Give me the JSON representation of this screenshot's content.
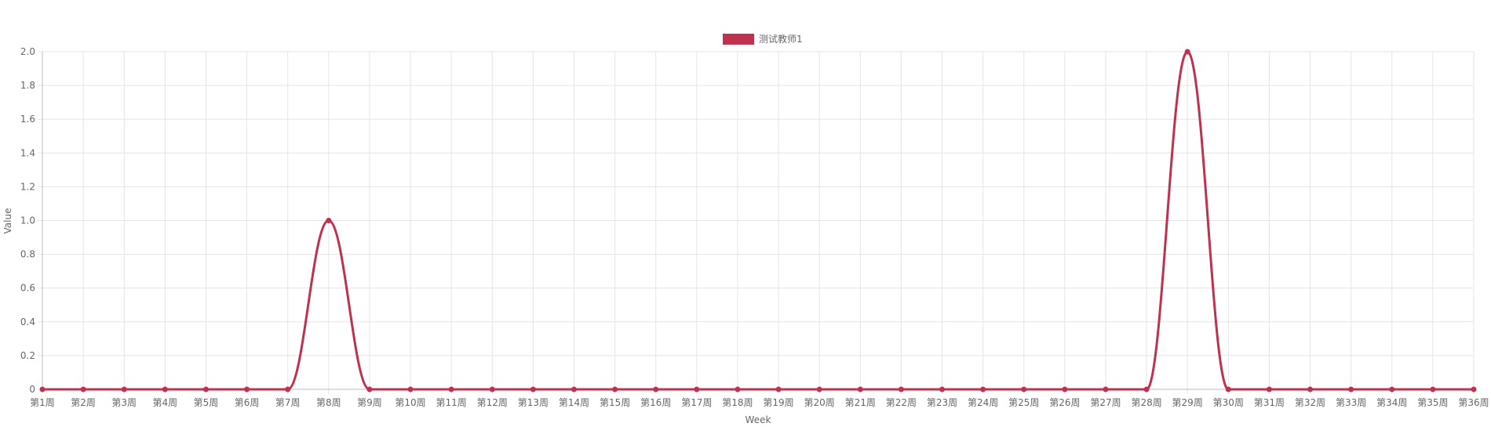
{
  "chart_data": {
    "type": "line",
    "title": "",
    "xlabel": "Week",
    "ylabel": "Value",
    "ylim": [
      0,
      2
    ],
    "yticks": [
      0,
      0.2,
      0.4,
      0.6,
      0.8,
      1.0,
      1.2,
      1.4,
      1.6,
      1.8,
      2.0
    ],
    "ytick_labels": [
      "0",
      "0.2",
      "0.4",
      "0.6",
      "0.8",
      "1.0",
      "1.2",
      "1.4",
      "1.6",
      "1.8",
      "2.0"
    ],
    "grid": true,
    "legend_position": "top-center",
    "categories": [
      "第1周",
      "第2周",
      "第3周",
      "第4周",
      "第5周",
      "第6周",
      "第7周",
      "第8周",
      "第9周",
      "第10周",
      "第11周",
      "第12周",
      "第13周",
      "第14周",
      "第15周",
      "第16周",
      "第17周",
      "第18周",
      "第19周",
      "第20周",
      "第21周",
      "第22周",
      "第23周",
      "第24周",
      "第25周",
      "第26周",
      "第27周",
      "第28周",
      "第29周",
      "第30周",
      "第31周",
      "第32周",
      "第33周",
      "第34周",
      "第35周",
      "第36周"
    ],
    "series": [
      {
        "name": "测试教师1",
        "color": "#c0304f",
        "values": [
          0,
          0,
          0,
          0,
          0,
          0,
          0,
          1,
          0,
          0,
          0,
          0,
          0,
          0,
          0,
          0,
          0,
          0,
          0,
          0,
          0,
          0,
          0,
          0,
          0,
          0,
          0,
          0,
          2,
          0,
          0,
          0,
          0,
          0,
          0,
          0
        ]
      }
    ]
  }
}
